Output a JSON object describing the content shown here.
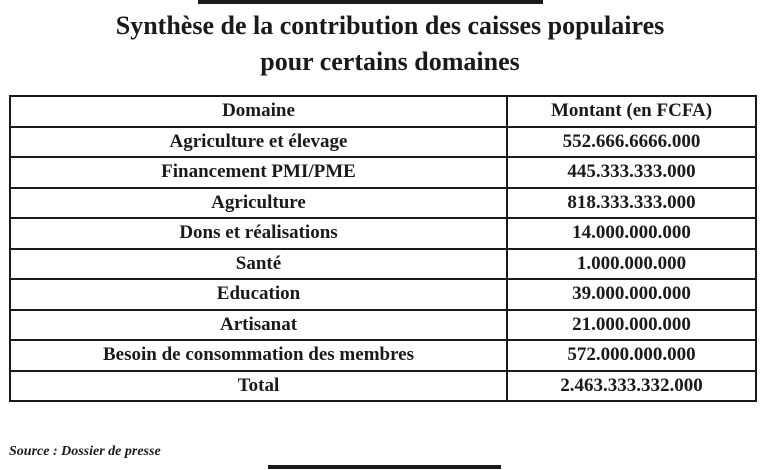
{
  "title": {
    "line1": "Synthèse de la contribution des caisses populaires",
    "line2": "pour certains domaines"
  },
  "table": {
    "headers": [
      "Domaine",
      "Montant (en FCFA)"
    ],
    "rows": [
      {
        "domaine": "Agriculture et élevage",
        "montant": "552.666.6666.000"
      },
      {
        "domaine": "Financement PMI/PME",
        "montant": "445.333.333.000"
      },
      {
        "domaine": "Agriculture",
        "montant": "818.333.333.000"
      },
      {
        "domaine": "Dons et réalisations",
        "montant": "14.000.000.000"
      },
      {
        "domaine": "Santé",
        "montant": "1.000.000.000"
      },
      {
        "domaine": "Education",
        "montant": "39.000.000.000"
      },
      {
        "domaine": "Artisanat",
        "montant": "21.000.000.000"
      },
      {
        "domaine": "Besoin de consommation des membres",
        "montant": "572.000.000.000"
      }
    ],
    "total": {
      "domaine": "Total",
      "montant": "2.463.333.332.000"
    }
  },
  "source": "Source : Dossier de presse"
}
